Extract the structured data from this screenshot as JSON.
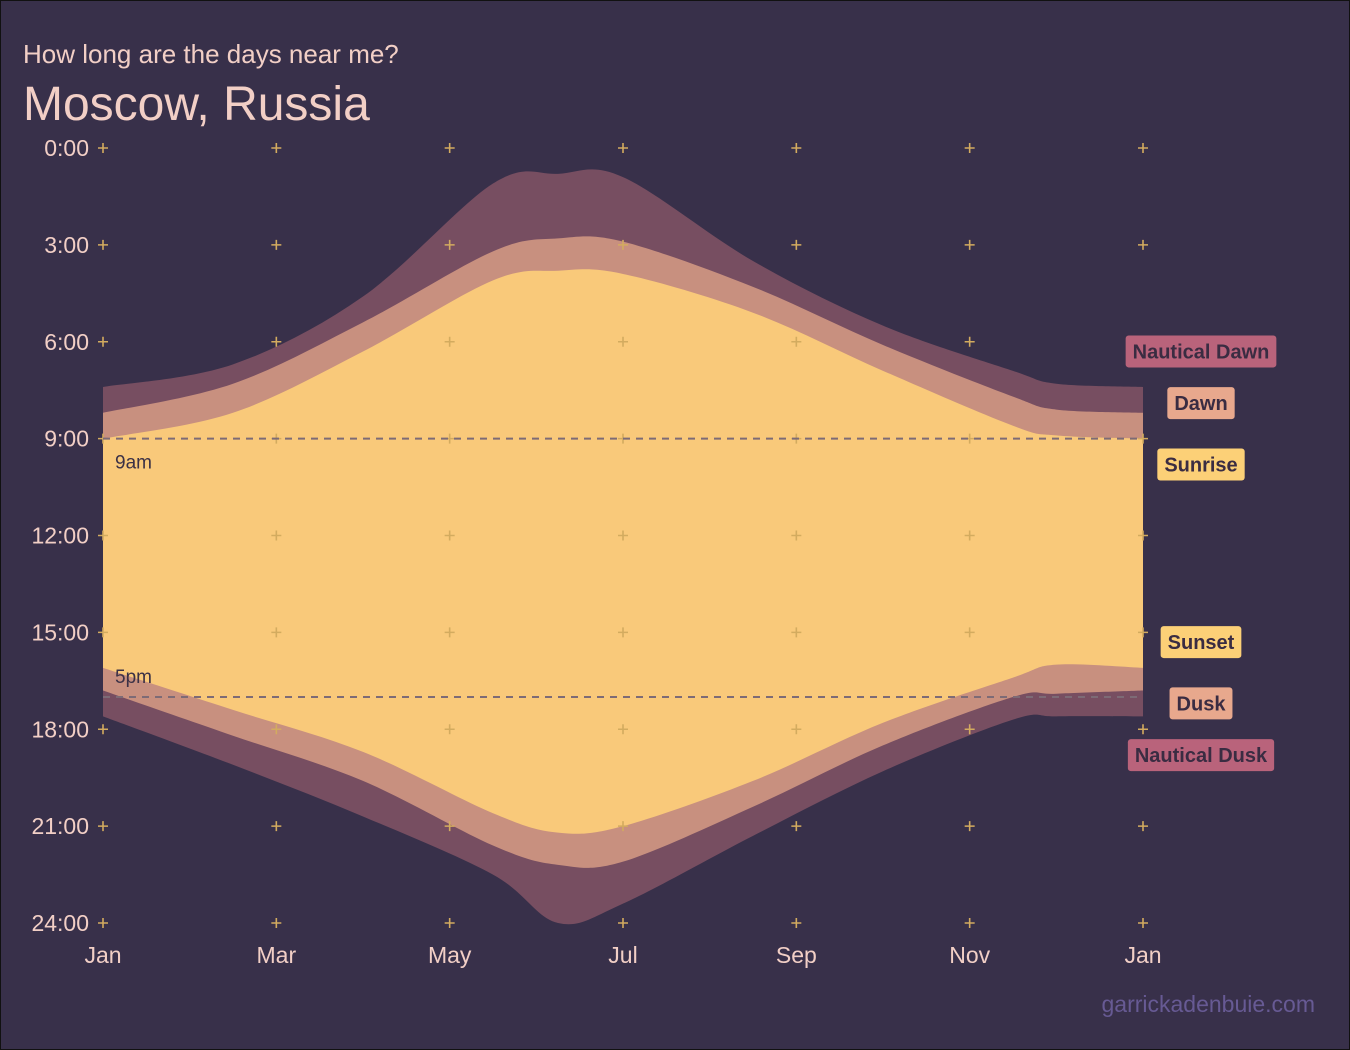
{
  "header": {
    "subtitle": "How long are the days near me?",
    "title": "Moscow, Russia"
  },
  "caption": "garrickadenbuie.com",
  "colors": {
    "background": "#38304a",
    "text": "#f2cfc6",
    "grid": "#d3ab5f",
    "nautical": "#774e61",
    "civil": "#c8907f",
    "day": "#f9c97a",
    "label_nautical": "#b9637b",
    "label_civil": "#e8a88d",
    "label_day": "#fcd077"
  },
  "chart_data": {
    "type": "area",
    "x_ticks": [
      "Jan",
      "Mar",
      "May",
      "Jul",
      "Sep",
      "Nov",
      "Jan"
    ],
    "y_ticks": [
      "0:00",
      "3:00",
      "6:00",
      "9:00",
      "12:00",
      "15:00",
      "18:00",
      "21:00",
      "24:00"
    ],
    "ylim": [
      0,
      24
    ],
    "y_reversed": true,
    "grid": "plus-markers",
    "x_months": [
      0,
      1.5,
      3,
      4.5,
      5.25,
      6,
      7.5,
      9,
      10.5,
      11,
      12
    ],
    "series": [
      {
        "name": "Nautical Dawn",
        "values": [
          7.4,
          6.7,
          4.6,
          1.1,
          0.8,
          0.9,
          3.5,
          5.5,
          6.9,
          7.3,
          7.4
        ]
      },
      {
        "name": "Dawn",
        "values": [
          8.2,
          7.3,
          5.4,
          3.2,
          2.8,
          2.9,
          4.3,
          6.1,
          7.7,
          8.1,
          8.2
        ]
      },
      {
        "name": "Sunrise",
        "values": [
          9.0,
          8.2,
          6.3,
          4.1,
          3.8,
          3.9,
          5.1,
          6.9,
          8.6,
          8.9,
          9.0
        ]
      },
      {
        "name": "Sunset",
        "values": [
          16.1,
          17.4,
          18.7,
          20.6,
          21.2,
          21.0,
          19.6,
          17.8,
          16.4,
          16.0,
          16.1
        ]
      },
      {
        "name": "Dusk",
        "values": [
          16.8,
          18.2,
          19.6,
          21.6,
          22.2,
          22.1,
          20.4,
          18.5,
          17.0,
          16.9,
          16.8
        ]
      },
      {
        "name": "Nautical Dusk",
        "values": [
          17.6,
          19.1,
          20.7,
          22.5,
          24.0,
          23.4,
          21.3,
          19.3,
          17.7,
          17.6,
          17.6
        ]
      }
    ],
    "reference_lines": [
      {
        "y": 9,
        "label": "9am"
      },
      {
        "y": 17,
        "label": "5pm"
      }
    ],
    "end_labels": [
      {
        "name": "Nautical Dawn",
        "at_y": 6.3
      },
      {
        "name": "Dawn",
        "at_y": 7.9
      },
      {
        "name": "Sunrise",
        "at_y": 9.8
      },
      {
        "name": "Sunset",
        "at_y": 15.3
      },
      {
        "name": "Dusk",
        "at_y": 17.2
      },
      {
        "name": "Nautical Dusk",
        "at_y": 18.8
      }
    ]
  }
}
